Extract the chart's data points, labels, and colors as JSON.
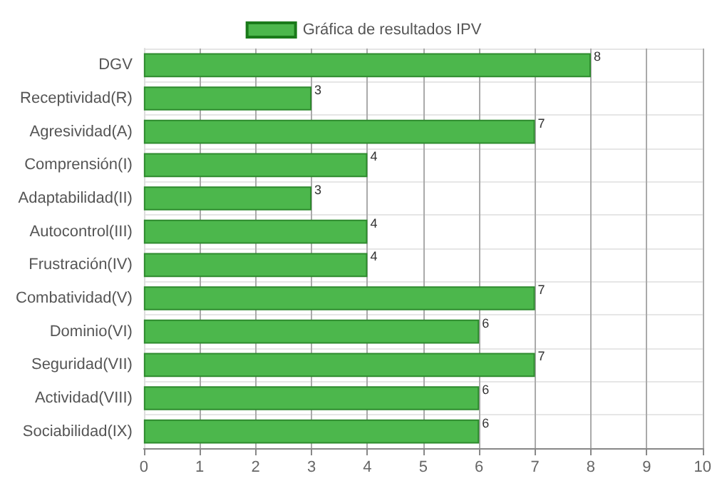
{
  "chart_data": {
    "type": "bar",
    "orientation": "horizontal",
    "categories": [
      "DGV",
      "Receptividad(R)",
      "Agresividad(A)",
      "Comprensión(I)",
      "Adaptabilidad(II)",
      "Autocontrol(III)",
      "Frustración(IV)",
      "Combatividad(V)",
      "Dominio(VI)",
      "Seguridad(VII)",
      "Actividad(VIII)",
      "Sociabilidad(IX)"
    ],
    "series": [
      {
        "name": "Gráfica de resultados IPV",
        "color": "#4cb74c",
        "values": [
          8,
          3,
          7,
          4,
          3,
          4,
          4,
          7,
          6,
          7,
          6,
          6
        ]
      }
    ],
    "xlim": [
      0,
      10
    ],
    "xticks": [
      0,
      1,
      2,
      3,
      4,
      5,
      6,
      7,
      8,
      9,
      10
    ],
    "grid": true,
    "legend": "top",
    "data_labels": true
  }
}
